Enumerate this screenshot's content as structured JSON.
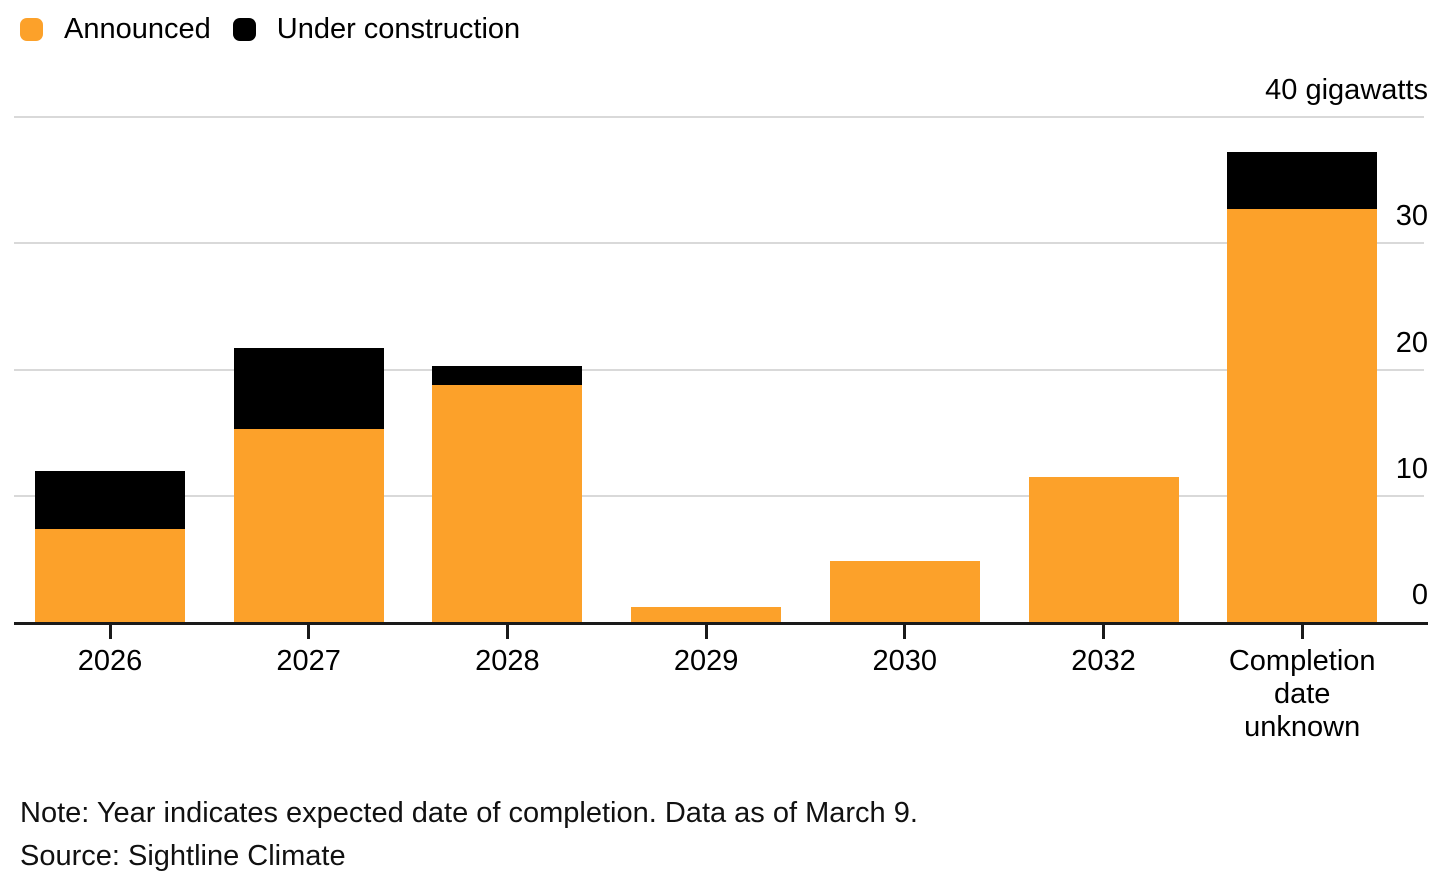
{
  "legend": {
    "items": [
      {
        "label": "Announced",
        "color": "#FCA12A"
      },
      {
        "label": "Under construction",
        "color": "#000000"
      }
    ]
  },
  "axis": {
    "top_label": "40 gigawatts",
    "tick_labels": [
      "0",
      "10",
      "20",
      "30"
    ],
    "tick_values": [
      0,
      10,
      20,
      30
    ],
    "max": 40
  },
  "footer": {
    "note": "Note: Year indicates expected date of completion. Data as of March 9.",
    "source": "Source: Sightline Climate"
  },
  "colors": {
    "announced": "#FCA12A",
    "under_construction": "#000000",
    "gridline": "#d9d9d9",
    "axis_line": "#1a1a1a"
  },
  "chart_data": {
    "type": "bar",
    "stacked": true,
    "title": "",
    "xlabel": "",
    "ylabel": "gigawatts",
    "ylim": [
      0,
      40
    ],
    "grid": true,
    "legend_position": "top-left",
    "y_axis_side": "right",
    "categories": [
      "2026",
      "2027",
      "2028",
      "2029",
      "2030",
      "2032",
      "Completion date unknown"
    ],
    "series": [
      {
        "name": "Announced",
        "color": "#FCA12A",
        "values": [
          7.4,
          15.3,
          18.8,
          1.2,
          4.8,
          11.5,
          32.7
        ]
      },
      {
        "name": "Under construction",
        "color": "#000000",
        "values": [
          4.6,
          6.4,
          1.5,
          0,
          0,
          0,
          4.5
        ]
      }
    ]
  }
}
